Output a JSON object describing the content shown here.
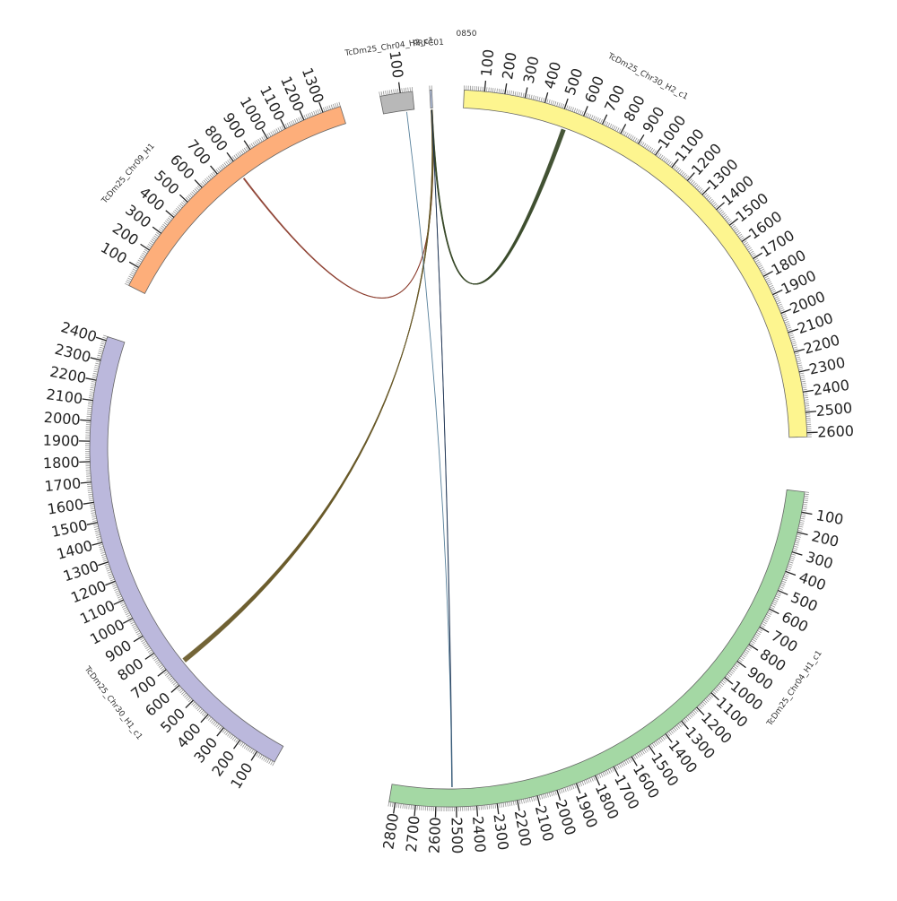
{
  "chart_data": {
    "type": "chord",
    "segments": [
      {
        "id": "PRFC01",
        "name": "PRFC01",
        "length": 10,
        "start_deg": 357.0,
        "color": "#b8c8e8",
        "tick_labels": []
      },
      {
        "id": "Chr30_H2",
        "name": "TcDm25_Chr30_H2_c1",
        "length": 2620,
        "start_deg": 2.5,
        "color": "#fdf58f",
        "tick_labels": [
          "100",
          "200",
          "300",
          "400",
          "500",
          "600",
          "700",
          "800",
          "900",
          "1000",
          "1100",
          "1200",
          "1300",
          "1400",
          "1500",
          "1600",
          "1700",
          "1800",
          "1900",
          "2000",
          "2100",
          "2200",
          "2300",
          "2400",
          "2500",
          "2600"
        ]
      },
      {
        "id": "Chr04_H1",
        "name": "TcDm25_Chr04_H1_c1",
        "length": 2830,
        "start_deg": 97.0,
        "color": "#a4d8a4",
        "tick_labels": [
          "100",
          "200",
          "300",
          "400",
          "500",
          "600",
          "700",
          "800",
          "900",
          "1000",
          "1100",
          "1200",
          "1300",
          "1400",
          "1500",
          "1600",
          "1700",
          "1800",
          "1900",
          "2000",
          "2100",
          "2200",
          "2300",
          "2400",
          "2500",
          "2600",
          "2700",
          "2800"
        ]
      },
      {
        "id": "Chr30_H1",
        "name": "TcDm25_Chr30_H1_c1",
        "length": 2420,
        "start_deg": 209.0,
        "color": "#bbb8dc",
        "tick_labels": [
          "100",
          "200",
          "300",
          "400",
          "500",
          "600",
          "700",
          "800",
          "900",
          "1000",
          "1100",
          "1200",
          "1300",
          "1400",
          "1500",
          "1600",
          "1700",
          "1800",
          "1900",
          "2000",
          "2100",
          "2200",
          "2300",
          "2400"
        ]
      },
      {
        "id": "Chr09_H1",
        "name": "TcDm25_Chr09_H1",
        "length": 1390,
        "start_deg": 297.0,
        "color": "#fdae7a",
        "tick_labels": [
          "100",
          "200",
          "300",
          "400",
          "500",
          "600",
          "700",
          "800",
          "900",
          "1000",
          "1100",
          "1200",
          "1300"
        ]
      },
      {
        "id": "Chr04_H2",
        "name": "TcDm25_Chr04_H2_c1",
        "length": 160,
        "start_deg": 349.0,
        "color": "#b8b8b8",
        "tick_labels": [
          "100"
        ]
      }
    ],
    "top_label": "0850",
    "links": [
      {
        "from": "PRFC01",
        "from_pos": 5,
        "to": "Chr30_H2",
        "to_pos": 530,
        "color": "#3a4a2a",
        "count": 9
      },
      {
        "from": "PRFC01",
        "from_pos": 5,
        "to": "Chr09_H1",
        "to_pos": 790,
        "color": "#8a3a2a",
        "count": 3
      },
      {
        "from": "PRFC01",
        "from_pos": 5,
        "to": "Chr30_H1",
        "to_pos": 680,
        "color": "#6a5a2a",
        "count": 10
      },
      {
        "from": "PRFC01",
        "from_pos": 5,
        "to": "Chr04_H1",
        "to_pos": 2520,
        "color": "#1a3050",
        "count": 2
      },
      {
        "from": "Chr04_H2",
        "from_pos": 120,
        "to": "Chr04_H1",
        "to_pos": 2520,
        "color": "#3a6a8a",
        "count": 1
      }
    ]
  }
}
